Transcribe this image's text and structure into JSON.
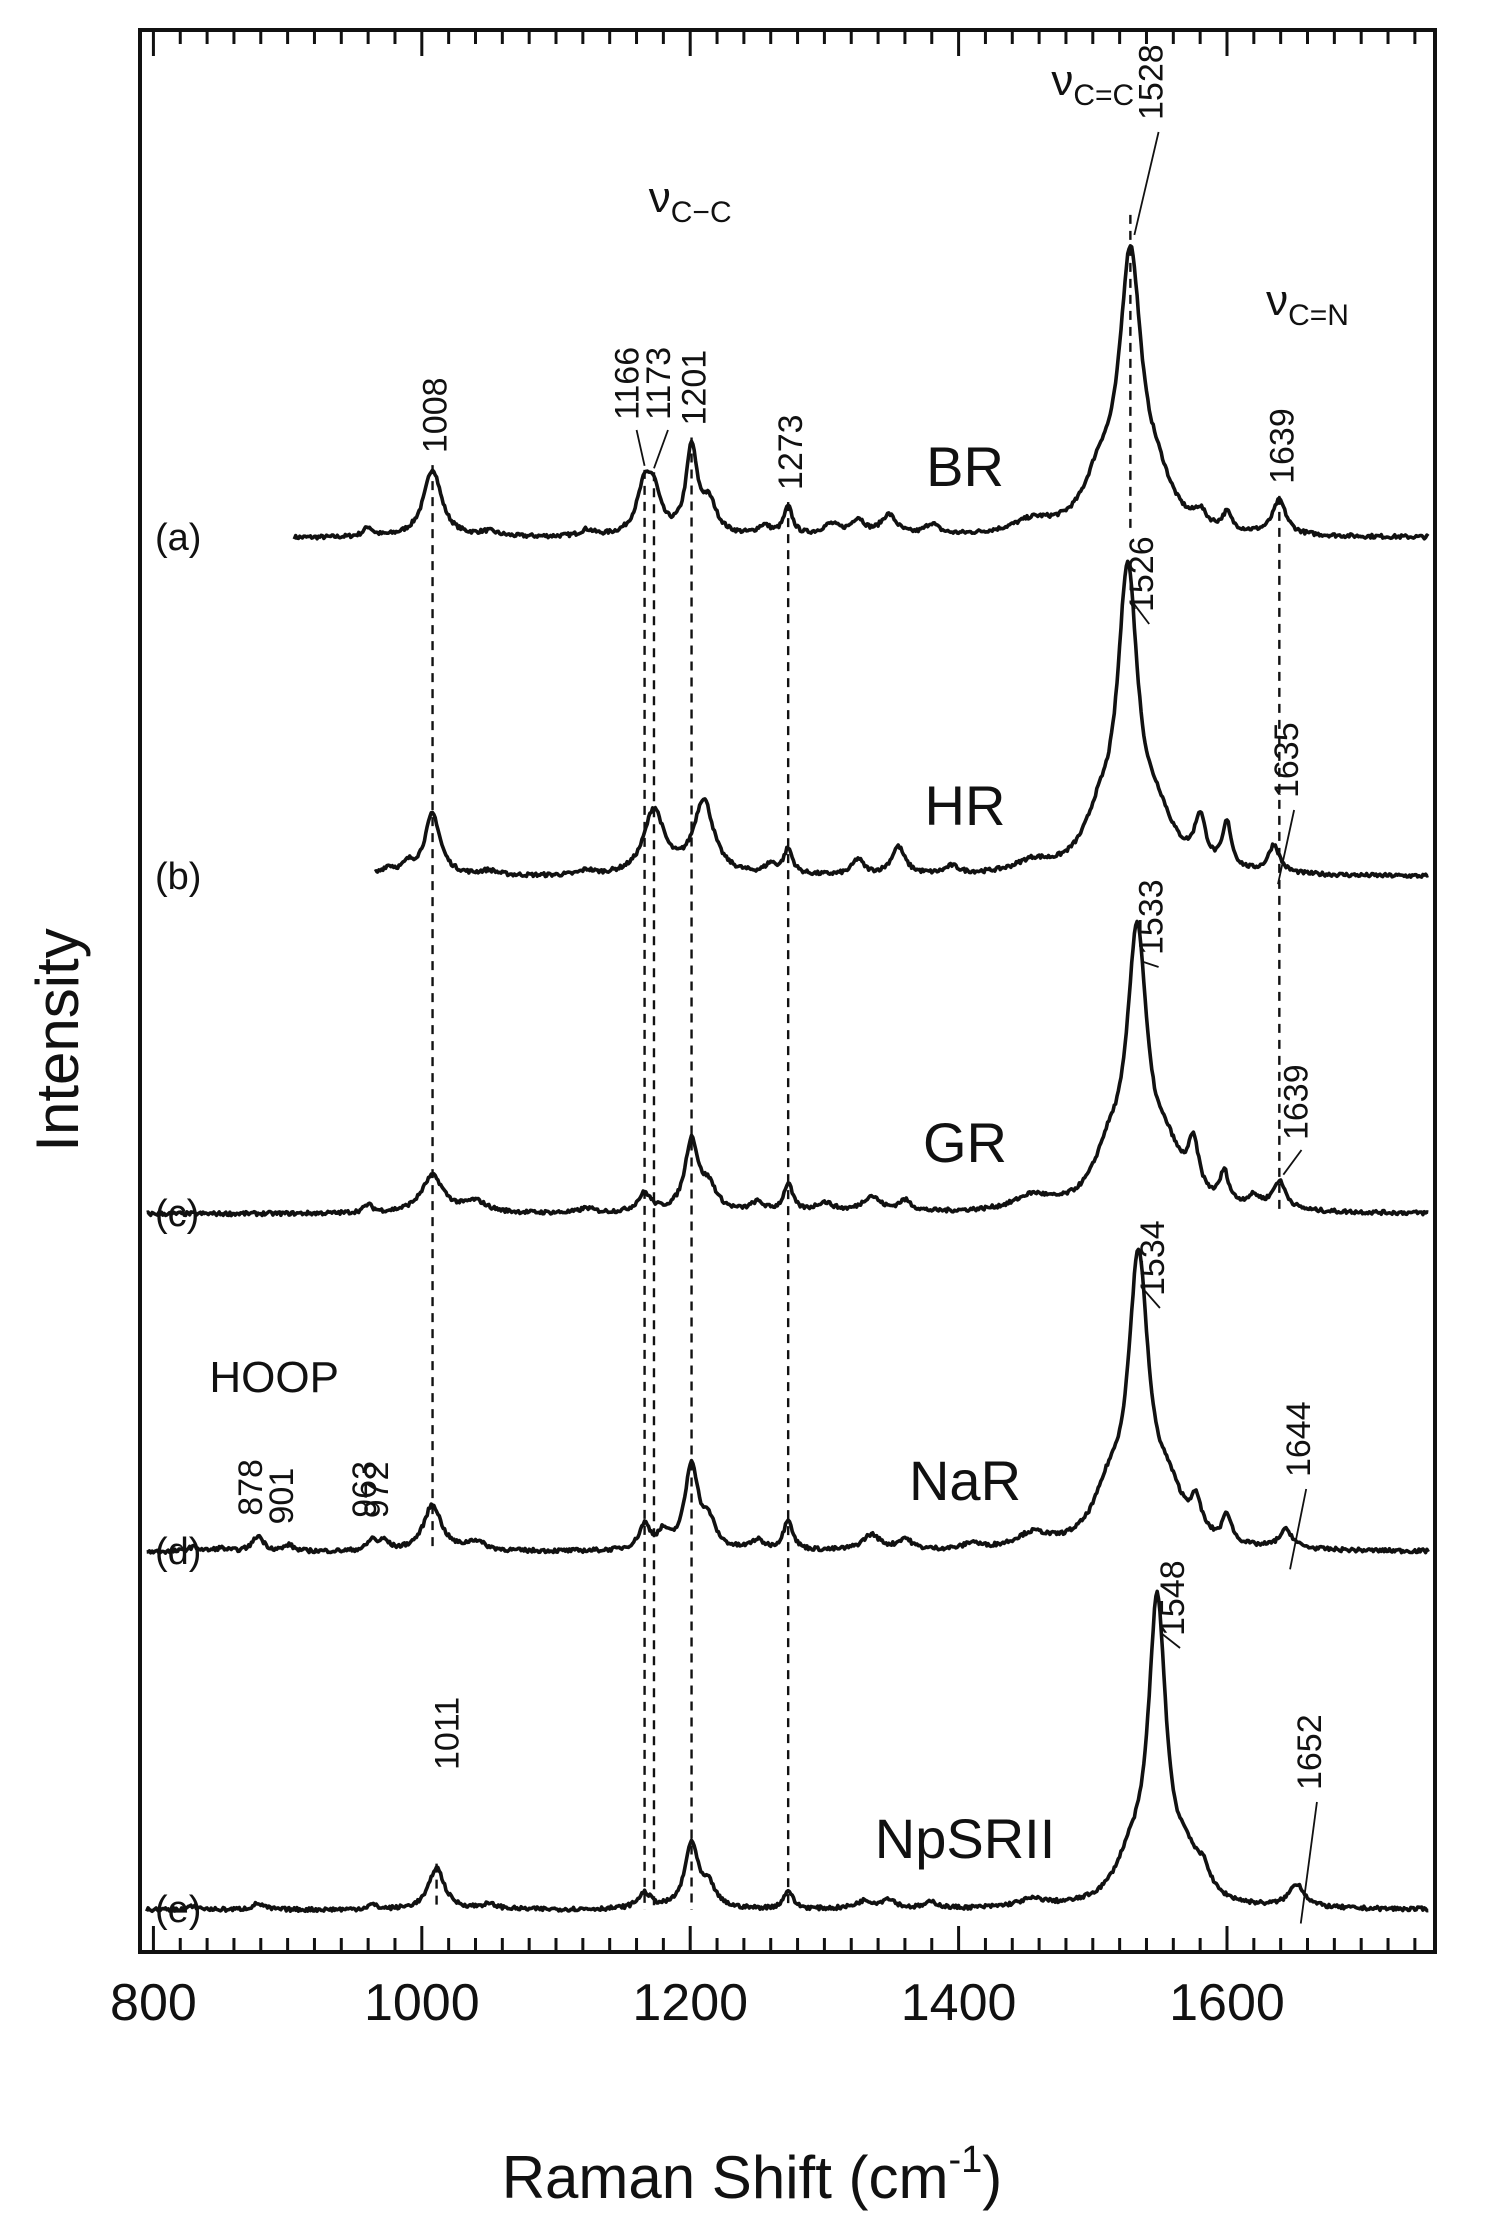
{
  "chart_data": {
    "type": "line",
    "title": "",
    "xlabel": "Raman Shift (cm",
    "xlabel_superscript": "-1",
    "xlabel_close": ")",
    "ylabel": "Intensity",
    "xlim": [
      790,
      1755
    ],
    "xticks": [
      800,
      1000,
      1200,
      1400,
      1600
    ],
    "x_minor_step": 20,
    "grid": false,
    "legend": "none",
    "line_color": "#111111",
    "series": [
      {
        "name": "BR",
        "panel": "(a)",
        "x_start": 905,
        "x_end": 1750,
        "peaks": [
          [
            960,
            0.06,
            4
          ],
          [
            1008,
            0.44,
            8
          ],
          [
            1050,
            0.03,
            8
          ],
          [
            1123,
            0.04,
            6
          ],
          [
            1166,
            0.3,
            7
          ],
          [
            1173,
            0.22,
            6
          ],
          [
            1201,
            0.55,
            5
          ],
          [
            1214,
            0.2,
            7
          ],
          [
            1255,
            0.06,
            6
          ],
          [
            1273,
            0.18,
            4
          ],
          [
            1305,
            0.07,
            8
          ],
          [
            1325,
            0.1,
            6
          ],
          [
            1348,
            0.13,
            7
          ],
          [
            1380,
            0.07,
            6
          ],
          [
            1455,
            0.08,
            18
          ],
          [
            1505,
            0.3,
            14
          ],
          [
            1528,
            1.72,
            10
          ],
          [
            1548,
            0.25,
            14
          ],
          [
            1580,
            0.09,
            5
          ],
          [
            1600,
            0.11,
            4
          ],
          [
            1639,
            0.22,
            6
          ]
        ]
      },
      {
        "name": "HR",
        "panel": "(b)",
        "x_start": 965,
        "x_end": 1750,
        "peaks": [
          [
            975,
            0.05,
            6
          ],
          [
            990,
            0.06,
            5
          ],
          [
            1008,
            0.4,
            7
          ],
          [
            1050,
            0.03,
            8
          ],
          [
            1123,
            0.03,
            6
          ],
          [
            1173,
            0.42,
            9
          ],
          [
            1210,
            0.48,
            9
          ],
          [
            1260,
            0.06,
            5
          ],
          [
            1273,
            0.16,
            4
          ],
          [
            1325,
            0.1,
            5
          ],
          [
            1355,
            0.18,
            6
          ],
          [
            1395,
            0.05,
            6
          ],
          [
            1455,
            0.07,
            15
          ],
          [
            1505,
            0.28,
            14
          ],
          [
            1526,
            1.85,
            9
          ],
          [
            1548,
            0.3,
            15
          ],
          [
            1580,
            0.3,
            5
          ],
          [
            1600,
            0.29,
            4
          ],
          [
            1635,
            0.18,
            5
          ]
        ]
      },
      {
        "name": "GR",
        "panel": "(c)",
        "x_start": 795,
        "x_end": 1750,
        "peaks": [
          [
            960,
            0.05,
            4
          ],
          [
            1008,
            0.24,
            10
          ],
          [
            1040,
            0.07,
            10
          ],
          [
            1123,
            0.03,
            6
          ],
          [
            1166,
            0.12,
            6
          ],
          [
            1201,
            0.46,
            6
          ],
          [
            1214,
            0.15,
            7
          ],
          [
            1250,
            0.06,
            6
          ],
          [
            1273,
            0.18,
            4
          ],
          [
            1300,
            0.06,
            8
          ],
          [
            1335,
            0.1,
            8
          ],
          [
            1360,
            0.07,
            6
          ],
          [
            1455,
            0.09,
            16
          ],
          [
            1512,
            0.3,
            14
          ],
          [
            1533,
            1.7,
            9
          ],
          [
            1555,
            0.3,
            14
          ],
          [
            1575,
            0.32,
            5
          ],
          [
            1598,
            0.2,
            4
          ],
          [
            1620,
            0.07,
            6
          ],
          [
            1639,
            0.18,
            6
          ]
        ]
      },
      {
        "name": "NaR",
        "panel": "(d)",
        "x_start": 795,
        "x_end": 1750,
        "peaks": [
          [
            830,
            0.03,
            5
          ],
          [
            850,
            0.02,
            5
          ],
          [
            878,
            0.1,
            5
          ],
          [
            901,
            0.04,
            4
          ],
          [
            963,
            0.07,
            4
          ],
          [
            972,
            0.06,
            4
          ],
          [
            1008,
            0.3,
            8
          ],
          [
            1040,
            0.06,
            8
          ],
          [
            1166,
            0.16,
            5
          ],
          [
            1180,
            0.1,
            5
          ],
          [
            1201,
            0.55,
            6
          ],
          [
            1214,
            0.16,
            6
          ],
          [
            1250,
            0.06,
            6
          ],
          [
            1273,
            0.2,
            4
          ],
          [
            1335,
            0.1,
            8
          ],
          [
            1360,
            0.07,
            6
          ],
          [
            1410,
            0.04,
            6
          ],
          [
            1455,
            0.09,
            15
          ],
          [
            1512,
            0.3,
            14
          ],
          [
            1534,
            1.78,
            9
          ],
          [
            1556,
            0.3,
            14
          ],
          [
            1577,
            0.2,
            5
          ],
          [
            1600,
            0.18,
            4
          ],
          [
            1644,
            0.12,
            6
          ]
        ]
      },
      {
        "name": "NpSRII",
        "panel": "(e)",
        "x_start": 795,
        "x_end": 1750,
        "peaks": [
          [
            830,
            0.02,
            6
          ],
          [
            878,
            0.04,
            5
          ],
          [
            963,
            0.03,
            4
          ],
          [
            1011,
            0.27,
            7
          ],
          [
            1050,
            0.03,
            8
          ],
          [
            1166,
            0.1,
            6
          ],
          [
            1201,
            0.42,
            6
          ],
          [
            1214,
            0.13,
            6
          ],
          [
            1273,
            0.12,
            4
          ],
          [
            1330,
            0.05,
            8
          ],
          [
            1348,
            0.06,
            6
          ],
          [
            1380,
            0.04,
            6
          ],
          [
            1455,
            0.05,
            14
          ],
          [
            1528,
            0.25,
            14
          ],
          [
            1548,
            1.9,
            8
          ],
          [
            1570,
            0.25,
            12
          ],
          [
            1583,
            0.12,
            5
          ],
          [
            1652,
            0.15,
            7
          ]
        ]
      }
    ],
    "guide_lines": [
      {
        "x": 1008,
        "from": "BR",
        "to": "NaR"
      },
      {
        "x": 1011,
        "from": "NpSRII",
        "to": "NpSRII"
      },
      {
        "x": 1166,
        "from": "BR",
        "to": "NpSRII"
      },
      {
        "x": 1173,
        "from": "BR",
        "to": "NpSRII"
      },
      {
        "x": 1201,
        "from": "BR",
        "to": "NpSRII"
      },
      {
        "x": 1273,
        "from": "BR",
        "to": "NpSRII"
      },
      {
        "x": 1528,
        "from": "BR",
        "to": "BR"
      },
      {
        "x": 1639,
        "from": "BR",
        "to": "GR"
      }
    ],
    "peak_labels": [
      {
        "text": "1008",
        "x": 1008,
        "series": "BR"
      },
      {
        "text": "1166",
        "x": 1166,
        "series": "BR"
      },
      {
        "text": "1173",
        "x": 1173,
        "series": "BR"
      },
      {
        "text": "1201",
        "x": 1201,
        "series": "BR"
      },
      {
        "text": "1273",
        "x": 1273,
        "series": "BR"
      },
      {
        "text": "1528",
        "x": 1528,
        "series": "BR"
      },
      {
        "text": "1639",
        "x": 1639,
        "series": "BR"
      },
      {
        "text": "1526",
        "x": 1526,
        "series": "HR"
      },
      {
        "text": "1635",
        "x": 1635,
        "series": "HR"
      },
      {
        "text": "1533",
        "x": 1533,
        "series": "GR"
      },
      {
        "text": "1639",
        "x": 1639,
        "series": "GR"
      },
      {
        "text": "1534",
        "x": 1534,
        "series": "NaR"
      },
      {
        "text": "1644",
        "x": 1644,
        "series": "NaR"
      },
      {
        "text": "878",
        "x": 878,
        "series": "NaR"
      },
      {
        "text": "901",
        "x": 901,
        "series": "NaR"
      },
      {
        "text": "963",
        "x": 963,
        "series": "NaR"
      },
      {
        "text": "972",
        "x": 972,
        "series": "NaR"
      },
      {
        "text": "1548",
        "x": 1548,
        "series": "NpSRII"
      },
      {
        "text": "1011",
        "x": 1011,
        "series": "NpSRII"
      },
      {
        "text": "1652",
        "x": 1652,
        "series": "NpSRII"
      }
    ],
    "annotations": [
      {
        "text": "ν",
        "sub": "C−C",
        "near_x": 1200
      },
      {
        "text": "ν",
        "sub": "C=C",
        "near_x": 1528
      },
      {
        "text": "ν",
        "sub": "C=N",
        "near_x": 1639
      },
      {
        "text": "HOOP",
        "near_x": 900
      }
    ]
  }
}
